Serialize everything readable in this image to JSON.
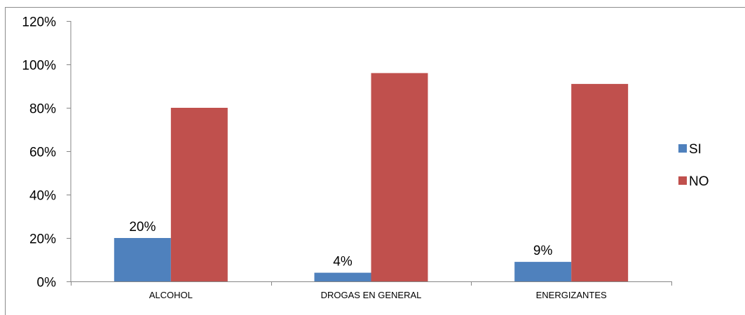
{
  "chart_data": {
    "type": "bar",
    "title": "",
    "xlabel": "",
    "ylabel": "",
    "categories": [
      "ALCOHOL",
      "DROGAS EN GENERAL",
      "ENERGIZANTES"
    ],
    "series": [
      {
        "name": "SI",
        "values": [
          20,
          4,
          9
        ],
        "labels": [
          "20%",
          "4%",
          "9%"
        ],
        "color": "#4f81bd"
      },
      {
        "name": "NO",
        "values": [
          80,
          96,
          91
        ],
        "color": "#c0504d"
      }
    ],
    "ylim": [
      0,
      120
    ],
    "yticks": [
      0,
      20,
      40,
      60,
      80,
      100,
      120
    ],
    "ytick_labels": [
      "0%",
      "20%",
      "40%",
      "60%",
      "80%",
      "100%",
      "120%"
    ],
    "grid": false,
    "legend_position": "right"
  }
}
